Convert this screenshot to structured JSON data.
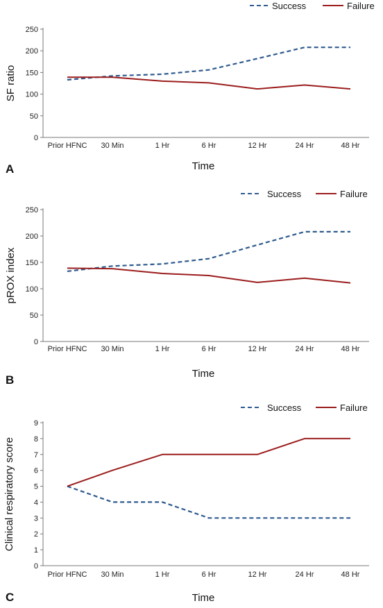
{
  "colors": {
    "success": "#2e5a8e",
    "failure": "#9b1c1c",
    "axis": "#777777"
  },
  "legend": {
    "success": "Success",
    "failure": "Failure"
  },
  "chart_data": [
    {
      "panel": "A",
      "type": "line",
      "categories": [
        "Prior HFNC",
        "30 Min",
        "1 Hr",
        "6 Hr",
        "12 Hr",
        "24 Hr",
        "48 Hr"
      ],
      "xlabel": "Time",
      "ylabel": "SF ratio",
      "ylim": [
        0,
        250
      ],
      "yticks": [
        0,
        50,
        100,
        150,
        200,
        250
      ],
      "series": [
        {
          "name": "Success",
          "style": "dashed",
          "values": [
            133,
            142,
            146,
            156,
            182,
            208,
            208
          ]
        },
        {
          "name": "Failure",
          "style": "solid",
          "values": [
            139,
            139,
            130,
            126,
            112,
            121,
            112
          ]
        }
      ]
    },
    {
      "panel": "B",
      "type": "line",
      "categories": [
        "Prior HFNC",
        "30 Min",
        "1 Hr",
        "6 Hr",
        "12 Hr",
        "24 Hr",
        "48 Hr"
      ],
      "xlabel": "Time",
      "ylabel": "pROX index",
      "ylim": [
        0,
        250
      ],
      "yticks": [
        0,
        50,
        100,
        150,
        200,
        250
      ],
      "series": [
        {
          "name": "Success",
          "style": "dashed",
          "values": [
            133,
            143,
            147,
            157,
            183,
            208,
            208
          ]
        },
        {
          "name": "Failure",
          "style": "solid",
          "values": [
            139,
            138,
            129,
            125,
            112,
            120,
            111
          ]
        }
      ]
    },
    {
      "panel": "C",
      "type": "line",
      "categories": [
        "Prior HFNC",
        "30 Min",
        "1 Hr",
        "6 Hr",
        "12 Hr",
        "24 Hr",
        "48 Hr"
      ],
      "xlabel": "Time",
      "ylabel": "Clinical respiratory score",
      "ylim": [
        0,
        9
      ],
      "yticks": [
        0,
        1,
        2,
        3,
        4,
        5,
        6,
        7,
        8,
        9
      ],
      "series": [
        {
          "name": "Success",
          "style": "dashed",
          "values": [
            5,
            4,
            4,
            3,
            3,
            3,
            3
          ]
        },
        {
          "name": "Failure",
          "style": "solid",
          "values": [
            5,
            6,
            7,
            7,
            7,
            8,
            8
          ]
        }
      ]
    }
  ]
}
